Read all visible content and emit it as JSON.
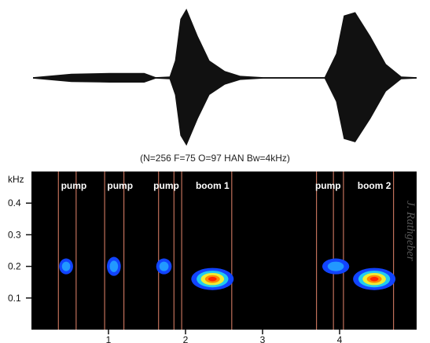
{
  "chart_data": [
    {
      "type": "area",
      "title": "",
      "xlabel": "",
      "ylabel": "",
      "description_units": "relative amplitude",
      "x": [
        0.0,
        0.5,
        1.0,
        1.45,
        1.6,
        1.78,
        1.85,
        1.92,
        2.0,
        2.15,
        2.3,
        2.5,
        2.7,
        3.0,
        3.4,
        3.8,
        3.95,
        4.05,
        4.2,
        4.4,
        4.6,
        4.8,
        5.0
      ],
      "values": [
        0.01,
        0.06,
        0.07,
        0.07,
        0.01,
        0.02,
        0.25,
        0.85,
        1.0,
        0.6,
        0.25,
        0.1,
        0.03,
        0.01,
        0.01,
        0.01,
        0.35,
        0.9,
        0.95,
        0.6,
        0.2,
        0.02,
        0.01
      ]
    },
    {
      "type": "heatmap",
      "ylabel": "kHz",
      "y_ticks": [
        "0.1",
        "0.2",
        "0.3",
        "0.4"
      ],
      "x_ticks": [
        "1",
        "2",
        "3",
        "4"
      ],
      "xlim": [
        0,
        5
      ],
      "ylim": [
        0,
        0.5
      ],
      "labels": [
        "pump",
        "pump",
        "pump",
        "boom 1",
        "pump",
        "boom 2"
      ],
      "label_x": [
        0.55,
        1.15,
        1.75,
        2.35,
        3.85,
        4.45
      ],
      "markers": [
        0.35,
        0.58,
        0.95,
        1.2,
        1.65,
        1.85,
        1.95,
        2.6,
        3.7,
        3.92,
        4.05,
        4.7
      ],
      "blobs": [
        {
          "x": 0.45,
          "y": 0.2,
          "w": 0.18,
          "h": 0.05,
          "intensity": 0.35
        },
        {
          "x": 1.07,
          "y": 0.2,
          "w": 0.18,
          "h": 0.06,
          "intensity": 0.35
        },
        {
          "x": 1.72,
          "y": 0.2,
          "w": 0.2,
          "h": 0.05,
          "intensity": 0.4
        },
        {
          "x": 2.35,
          "y": 0.16,
          "w": 0.55,
          "h": 0.07,
          "intensity": 1.0
        },
        {
          "x": 3.95,
          "y": 0.2,
          "w": 0.35,
          "h": 0.05,
          "intensity": 0.45
        },
        {
          "x": 4.45,
          "y": 0.16,
          "w": 0.55,
          "h": 0.07,
          "intensity": 1.0
        }
      ],
      "color_low": "#1144ff",
      "color_high": "#ff2200",
      "background": "#000000"
    }
  ],
  "params_text": "(N=256 F=75 O=97 HAN Bw=4kHz)",
  "credit": "J. Rathgeber"
}
